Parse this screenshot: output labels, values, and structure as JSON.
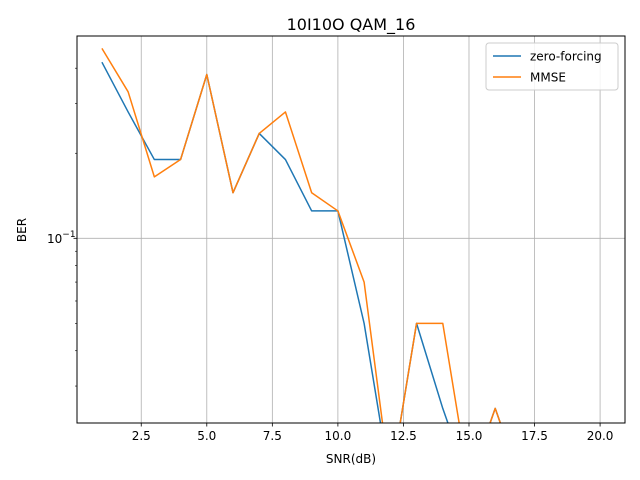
{
  "chart_data": {
    "type": "line",
    "title": "10I10O QAM_16",
    "xlabel": "SNR(dB)",
    "ylabel": "BER",
    "xscale": "linear",
    "yscale": "log",
    "xlim": [
      0.05,
      20.95
    ],
    "ylim": [
      0.0222,
      0.52
    ],
    "xticks": [
      2.5,
      5.0,
      7.5,
      10.0,
      12.5,
      15.0,
      17.5,
      20.0
    ],
    "xtick_labels": [
      "2.5",
      "5.0",
      "7.5",
      "10.0",
      "12.5",
      "15.0",
      "17.5",
      "20.0"
    ],
    "ytick_major": [
      0.1
    ],
    "ytick_major_labels": [
      {
        "base": "10",
        "exp": "−1"
      }
    ],
    "ytick_minor": [
      0.03,
      0.04,
      0.05,
      0.06,
      0.07,
      0.08,
      0.09,
      0.2,
      0.3,
      0.4
    ],
    "grid": true,
    "legend_position": "top-right",
    "x": [
      1,
      2,
      3,
      4,
      5,
      6,
      7,
      8,
      9,
      10,
      11,
      12,
      13,
      14,
      15,
      16,
      17,
      18,
      19,
      20
    ],
    "series": [
      {
        "name": "zero-forcing",
        "color": "#1f77b4",
        "values": [
          0.42,
          0.28,
          0.19,
          0.19,
          0.38,
          0.145,
          0.235,
          0.19,
          0.125,
          0.125,
          0.05,
          0,
          0.05,
          0.025,
          0,
          0.025,
          0,
          0,
          0,
          0
        ]
      },
      {
        "name": "MMSE",
        "color": "#ff7f0e",
        "values": [
          0.47,
          0.33,
          0.165,
          0.19,
          0.38,
          0.145,
          0.235,
          0.28,
          0.145,
          0.125,
          0.07,
          0,
          0.05,
          0.05,
          0,
          0.025,
          0,
          0,
          0,
          0
        ]
      }
    ]
  }
}
